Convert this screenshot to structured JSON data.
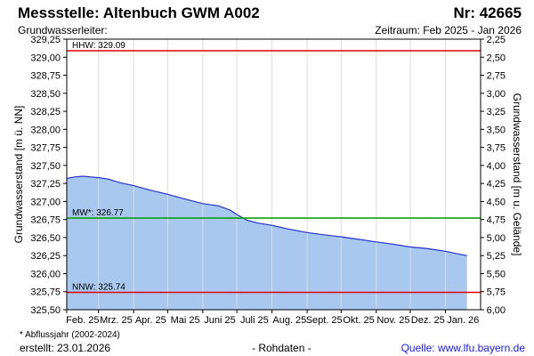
{
  "header": {
    "title": "Messstelle: Altenbuch GWM A002",
    "number": "Nr: 42665",
    "aquifer": "Grundwasserleiter:",
    "period": "Zeitraum: Feb 2025 - Jan 2026"
  },
  "footer": {
    "note": "* Abflussjahr (2002-2024)",
    "created": "erstellt:  23.01.2026",
    "raw": "- Rohdaten -",
    "source": "Quelle: www.lfu.bayern.de"
  },
  "chart_data": {
    "type": "area",
    "ylabel": "Grundwasserstand [m ü. NN]",
    "y2label": "Grundwasserstand [m u. Gelände]",
    "ylim": [
      325.5,
      329.25
    ],
    "y2lim": [
      6.0,
      2.25
    ],
    "yticks": [
      "329,25",
      "329,00",
      "328,75",
      "328,50",
      "328,25",
      "328,00",
      "327,75",
      "327,50",
      "327,25",
      "327,00",
      "326,75",
      "326,50",
      "326,25",
      "326,00",
      "325,75",
      "325,50"
    ],
    "y2ticks": [
      "2,25",
      "2,50",
      "2,75",
      "3,00",
      "3,25",
      "3,50",
      "3,75",
      "4,00",
      "4,25",
      "4,50",
      "4,75",
      "5,00",
      "5,25",
      "5,50",
      "5,75",
      "6,00"
    ],
    "xticks": [
      "Feb. 25",
      "Mrz. 25",
      "Apr. 25",
      "Mai 25",
      "Juni 25",
      "Juli 25",
      "Aug. 25",
      "Sept. 25",
      "Okt. 25",
      "Nov. 25",
      "Dez. 25",
      "Jan. 26"
    ],
    "grid": true,
    "series": [
      {
        "x": [
          "2025-02-01",
          "2025-02-08",
          "2025-02-15",
          "2025-02-22",
          "2025-03-01",
          "2025-03-10",
          "2025-03-20",
          "2025-04-01",
          "2025-04-15",
          "2025-05-01",
          "2025-05-15",
          "2025-06-01",
          "2025-06-15",
          "2025-06-25",
          "2025-07-01",
          "2025-07-10",
          "2025-07-20",
          "2025-08-01",
          "2025-08-15",
          "2025-09-01",
          "2025-09-15",
          "2025-10-01",
          "2025-10-15",
          "2025-11-01",
          "2025-11-15",
          "2025-12-01",
          "2025-12-15",
          "2026-01-01",
          "2026-01-10",
          "2026-01-20"
        ],
        "y": [
          327.32,
          327.34,
          327.35,
          327.34,
          327.33,
          327.31,
          327.26,
          327.22,
          327.16,
          327.1,
          327.04,
          326.97,
          326.94,
          326.88,
          326.82,
          326.74,
          326.7,
          326.67,
          326.62,
          326.57,
          326.54,
          326.51,
          326.48,
          326.44,
          326.41,
          326.37,
          326.35,
          326.31,
          326.28,
          326.25
        ]
      }
    ],
    "reference_lines": [
      {
        "label": "HHW: 329.09",
        "value": 329.09,
        "color": "#e00000"
      },
      {
        "label": "MW*: 326.77",
        "value": 326.77,
        "color": "#009900"
      },
      {
        "label": "NNW: 325.74",
        "value": 325.74,
        "color": "#e00000"
      }
    ],
    "colors": {
      "fill": "#a8c8f0",
      "line": "#2233cc"
    }
  }
}
